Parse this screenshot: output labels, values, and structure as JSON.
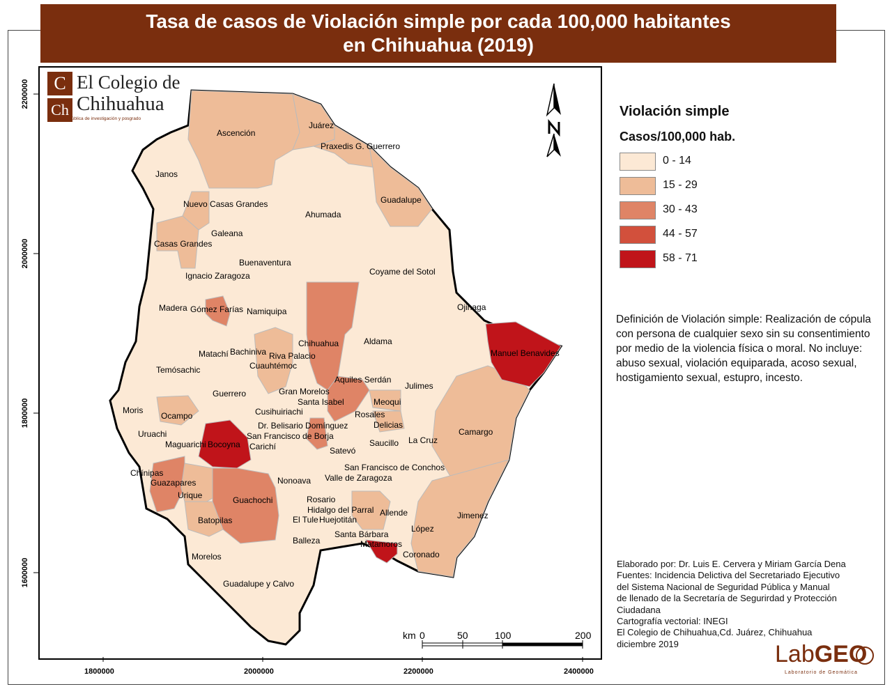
{
  "title": {
    "line1": "Tasa de casos de Violación simple por cada 100,000 habitantes",
    "line2": "en Chihuahua (2019)"
  },
  "logo": {
    "c1": "C",
    "c2": "Ch",
    "line1": "El Colegio de",
    "line2": "Chihuahua",
    "tagline": "Institución pública de investigación y posgrado"
  },
  "axes": {
    "x_ticks": [
      "1800000",
      "2000000",
      "2200000",
      "2400000"
    ],
    "y_ticks": [
      "2200000",
      "2000000",
      "1800000",
      "1600000"
    ]
  },
  "legend": {
    "title": "Violación simple",
    "subtitle": "Casos/100,000 hab.",
    "classes": [
      {
        "label": "0 - 14",
        "color": "#fce9d5"
      },
      {
        "label": "15 - 29",
        "color": "#eebc98"
      },
      {
        "label": "30 - 43",
        "color": "#df8466"
      },
      {
        "label": "44 - 57",
        "color": "#d2503c"
      },
      {
        "label": "58 - 71",
        "color": "#c0141a"
      }
    ]
  },
  "definition": "Definición de Violación simple: Realización de cópula con persona de cualquier sexo sin su consentimiento por medio de la violencia física o moral. No incluye: abuso sexual, violación equiparada, acoso sexual, hostigamiento sexual, estupro, incesto.",
  "credits": [
    "Elaborado por: Dr. Luis E. Cervera y Miriam García Dena",
    "Fuentes: Incidencia Delictiva del Secretariado Ejecutivo",
    "del Sistema Nacional de Seguridad Pública y Manual",
    "de llenado de la Secretaría de Segurirdad y Protección",
    "Ciudadana",
    "Cartografía vectorial: INEGI",
    "El Colegio de Chihuahua,Cd. Juárez, Chihuahua",
    "diciembre 2019"
  ],
  "scale": {
    "unit": "km",
    "ticks": [
      "0",
      "50",
      "100",
      "200"
    ]
  },
  "labgeo": {
    "name_light": "Lab",
    "name_bold": "GEO",
    "subtitle": "Laboratorio de Geomática"
  },
  "municipalities": [
    {
      "name": "Ascención",
      "class": 1
    },
    {
      "name": "Juárez",
      "class": 1
    },
    {
      "name": "Praxedis G. Guerrero",
      "class": 1
    },
    {
      "name": "Janos",
      "class": 0
    },
    {
      "name": "Nuevo Casas Grandes",
      "class": 1
    },
    {
      "name": "Guadalupe",
      "class": 1
    },
    {
      "name": "Ahumada",
      "class": 0
    },
    {
      "name": "Galeana",
      "class": 0
    },
    {
      "name": "Casas Grandes",
      "class": 1
    },
    {
      "name": "Buenaventura",
      "class": 0
    },
    {
      "name": "Ignacio Zaragoza",
      "class": 0
    },
    {
      "name": "Coyame del Sotol",
      "class": 0
    },
    {
      "name": "Madera",
      "class": 0
    },
    {
      "name": "Gómez Farías",
      "class": 2
    },
    {
      "name": "Namiquipa",
      "class": 0
    },
    {
      "name": "Ojinaga",
      "class": 0
    },
    {
      "name": "Chihuahua",
      "class": 2
    },
    {
      "name": "Aldama",
      "class": 0
    },
    {
      "name": "Bachiniva",
      "class": 0
    },
    {
      "name": "Riva Palacio",
      "class": 1
    },
    {
      "name": "Matachí",
      "class": 0
    },
    {
      "name": "Manuel Benavides",
      "class": 4
    },
    {
      "name": "Cuauhtémoc",
      "class": 1
    },
    {
      "name": "Temósachic",
      "class": 0
    },
    {
      "name": "Aquiles Serdán",
      "class": 2
    },
    {
      "name": "Julimes",
      "class": 0
    },
    {
      "name": "Guerrero",
      "class": 0
    },
    {
      "name": "Gran Morelos",
      "class": 0
    },
    {
      "name": "Santa Isabel",
      "class": 0
    },
    {
      "name": "Meoqui",
      "class": 1
    },
    {
      "name": "Moris",
      "class": 0
    },
    {
      "name": "Cusihuiriachi",
      "class": 0
    },
    {
      "name": "Rosales",
      "class": 0
    },
    {
      "name": "Ocampo",
      "class": 1
    },
    {
      "name": "Delicias",
      "class": 1
    },
    {
      "name": "Dr. Belisario Domínguez",
      "class": 2
    },
    {
      "name": "Camargo",
      "class": 1
    },
    {
      "name": "Uruachi",
      "class": 0
    },
    {
      "name": "San Francisco de Borja",
      "class": 0
    },
    {
      "name": "Maguarichi",
      "class": 0
    },
    {
      "name": "Bocoyna",
      "class": 4
    },
    {
      "name": "Carichí",
      "class": 0
    },
    {
      "name": "Saucillo",
      "class": 0
    },
    {
      "name": "La Cruz",
      "class": 0
    },
    {
      "name": "Satevó",
      "class": 0
    },
    {
      "name": "San Francisco de Conchos",
      "class": 0
    },
    {
      "name": "Chínipas",
      "class": 0
    },
    {
      "name": "Nonoava",
      "class": 0
    },
    {
      "name": "Valle de Zaragoza",
      "class": 0
    },
    {
      "name": "Guazapares",
      "class": 2
    },
    {
      "name": "Urique",
      "class": 1
    },
    {
      "name": "Guachochi",
      "class": 2
    },
    {
      "name": "Rosario",
      "class": 0
    },
    {
      "name": "Allende",
      "class": 1
    },
    {
      "name": "Jimenez",
      "class": 1
    },
    {
      "name": "Batopilas",
      "class": 1
    },
    {
      "name": "Hidalgo del Parral",
      "class": 1
    },
    {
      "name": "El Tule",
      "class": 0
    },
    {
      "name": "Huejotitán",
      "class": 0
    },
    {
      "name": "López",
      "class": 0
    },
    {
      "name": "Santa Bárbara",
      "class": 0
    },
    {
      "name": "Matamoros",
      "class": 4
    },
    {
      "name": "Balleza",
      "class": 0
    },
    {
      "name": "Coronado",
      "class": 0
    },
    {
      "name": "Morelos",
      "class": 0
    },
    {
      "name": "Guadalupe y Calvo",
      "class": 0
    }
  ]
}
